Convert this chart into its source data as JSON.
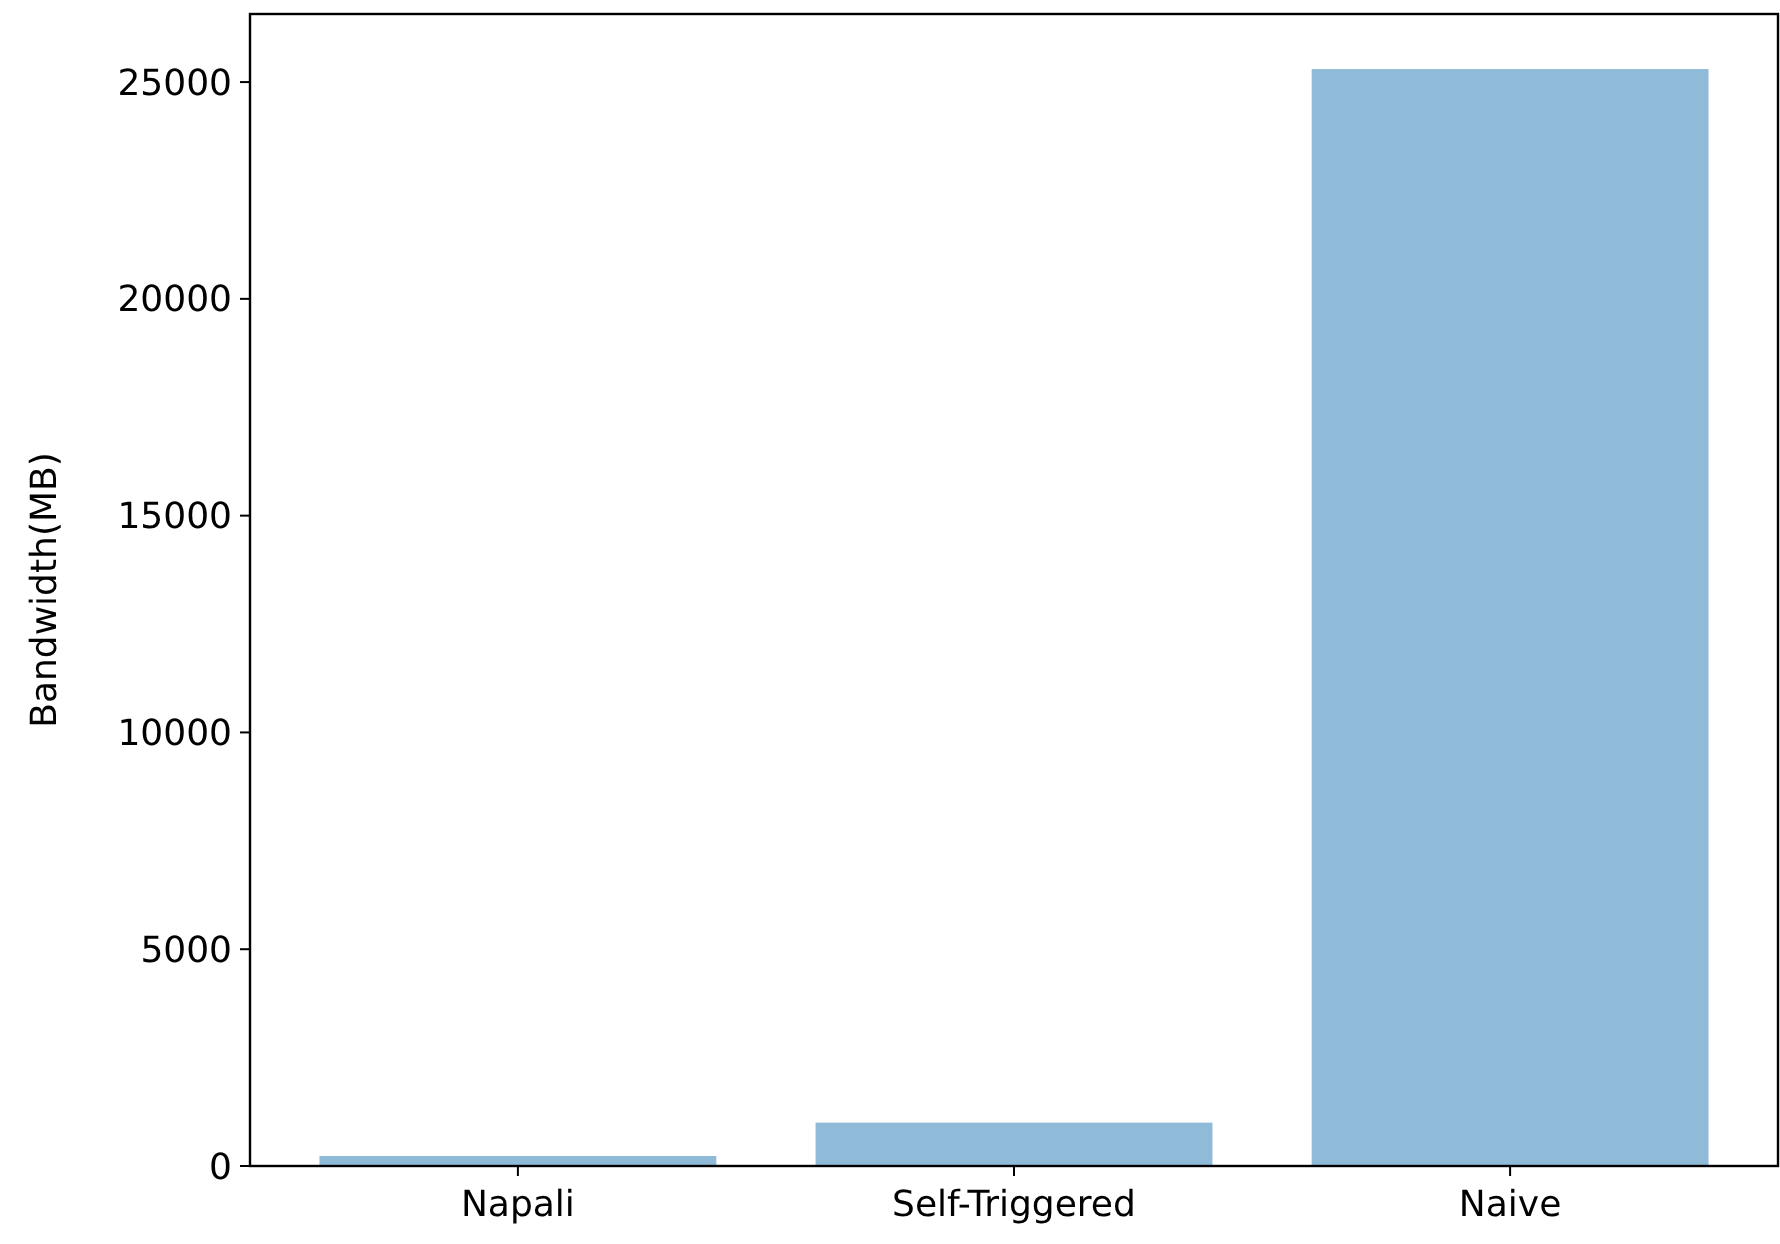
{
  "chart_data": {
    "type": "bar",
    "ylabel": "Bandwidth(MB)",
    "categories": [
      "Napali",
      "Self-Triggered",
      "Naive"
    ],
    "values": [
      230,
      1000,
      25300
    ],
    "color": "#8fbbd9",
    "ylim": [
      0,
      26570
    ],
    "yticks": [
      0,
      5000,
      10000,
      15000,
      20000,
      25000
    ],
    "grid": false
  }
}
